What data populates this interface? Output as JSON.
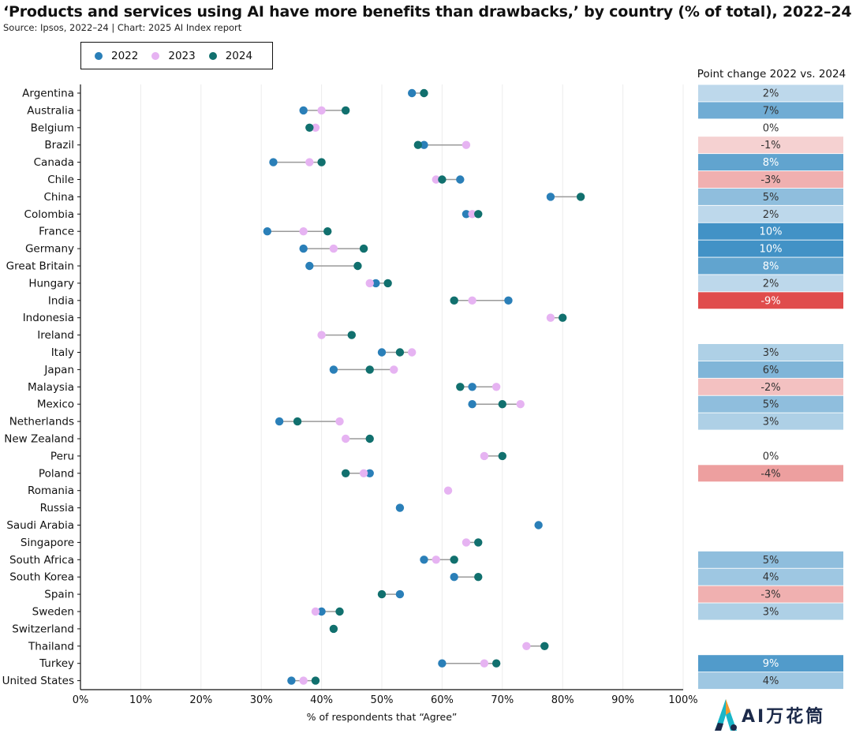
{
  "header": {
    "title": "‘Products and services using AI have more benefits than drawbacks,’ by country (% of total), 2022–24",
    "source": "Source: Ipsos, 2022–24 | Chart: 2025 AI Index report"
  },
  "delta_header": "Point change 2022 vs. 2024",
  "watermark": {
    "text": "AI万花筒"
  },
  "chart_data": {
    "type": "scatter",
    "subtype": "dumbbell",
    "title": "‘Products and services using AI have more benefits than drawbacks,’ by country (% of total), 2022–24",
    "xlabel": "% of respondents that “Agree”",
    "ylabel": "",
    "xlim": [
      0,
      100
    ],
    "x_ticks": [
      "0%",
      "10%",
      "20%",
      "30%",
      "40%",
      "50%",
      "60%",
      "70%",
      "80%",
      "90%",
      "100%"
    ],
    "grid": true,
    "legend_position": "top-left",
    "series": [
      {
        "name": "2022",
        "color": "#2a7fb8"
      },
      {
        "name": "2023",
        "color": "#e6b3f2"
      },
      {
        "name": "2024",
        "color": "#11706e"
      }
    ],
    "rows": [
      {
        "country": "Argentina",
        "v2022": 55,
        "v2023": null,
        "v2024": 57,
        "change": "2%",
        "change_value": 2
      },
      {
        "country": "Australia",
        "v2022": 37,
        "v2023": 40,
        "v2024": 44,
        "change": "7%",
        "change_value": 7
      },
      {
        "country": "Belgium",
        "v2022": null,
        "v2023": 39,
        "v2024": 38,
        "change": "0%",
        "change_value": 0
      },
      {
        "country": "Brazil",
        "v2022": 57,
        "v2023": 64,
        "v2024": 56,
        "change": "-1%",
        "change_value": -1
      },
      {
        "country": "Canada",
        "v2022": 32,
        "v2023": 38,
        "v2024": 40,
        "change": "8%",
        "change_value": 8
      },
      {
        "country": "Chile",
        "v2022": 63,
        "v2023": 59,
        "v2024": 60,
        "change": "-3%",
        "change_value": -3
      },
      {
        "country": "China",
        "v2022": 78,
        "v2023": null,
        "v2024": 83,
        "change": "5%",
        "change_value": 5
      },
      {
        "country": "Colombia",
        "v2022": 64,
        "v2023": 65,
        "v2024": 66,
        "change": "2%",
        "change_value": 2
      },
      {
        "country": "France",
        "v2022": 31,
        "v2023": 37,
        "v2024": 41,
        "change": "10%",
        "change_value": 10
      },
      {
        "country": "Germany",
        "v2022": 37,
        "v2023": 42,
        "v2024": 47,
        "change": "10%",
        "change_value": 10
      },
      {
        "country": "Great Britain",
        "v2022": 38,
        "v2023": null,
        "v2024": 46,
        "change": "8%",
        "change_value": 8
      },
      {
        "country": "Hungary",
        "v2022": 49,
        "v2023": 48,
        "v2024": 51,
        "change": "2%",
        "change_value": 2
      },
      {
        "country": "India",
        "v2022": 71,
        "v2023": 65,
        "v2024": 62,
        "change": "-9%",
        "change_value": -9
      },
      {
        "country": "Indonesia",
        "v2022": null,
        "v2023": 78,
        "v2024": 80,
        "change": "",
        "change_value": null
      },
      {
        "country": "Ireland",
        "v2022": null,
        "v2023": 40,
        "v2024": 45,
        "change": "",
        "change_value": null
      },
      {
        "country": "Italy",
        "v2022": 50,
        "v2023": 55,
        "v2024": 53,
        "change": "3%",
        "change_value": 3
      },
      {
        "country": "Japan",
        "v2022": 42,
        "v2023": 52,
        "v2024": 48,
        "change": "6%",
        "change_value": 6
      },
      {
        "country": "Malaysia",
        "v2022": 65,
        "v2023": 69,
        "v2024": 63,
        "change": "-2%",
        "change_value": -2
      },
      {
        "country": "Mexico",
        "v2022": 65,
        "v2023": 73,
        "v2024": 70,
        "change": "5%",
        "change_value": 5
      },
      {
        "country": "Netherlands",
        "v2022": 33,
        "v2023": 43,
        "v2024": 36,
        "change": "3%",
        "change_value": 3
      },
      {
        "country": "New Zealand",
        "v2022": null,
        "v2023": 44,
        "v2024": 48,
        "change": "",
        "change_value": null
      },
      {
        "country": "Peru",
        "v2022": null,
        "v2023": 67,
        "v2024": 70,
        "change": "0%",
        "change_value": 0
      },
      {
        "country": "Poland",
        "v2022": 48,
        "v2023": 47,
        "v2024": 44,
        "change": "-4%",
        "change_value": -4
      },
      {
        "country": "Romania",
        "v2022": null,
        "v2023": 61,
        "v2024": null,
        "change": "",
        "change_value": null
      },
      {
        "country": "Russia",
        "v2022": 53,
        "v2023": null,
        "v2024": null,
        "change": "",
        "change_value": null
      },
      {
        "country": "Saudi Arabia",
        "v2022": 76,
        "v2023": null,
        "v2024": null,
        "change": "",
        "change_value": null
      },
      {
        "country": "Singapore",
        "v2022": null,
        "v2023": 64,
        "v2024": 66,
        "change": "",
        "change_value": null
      },
      {
        "country": "South Africa",
        "v2022": 57,
        "v2023": 59,
        "v2024": 62,
        "change": "5%",
        "change_value": 5
      },
      {
        "country": "South Korea",
        "v2022": 62,
        "v2023": null,
        "v2024": 66,
        "change": "4%",
        "change_value": 4
      },
      {
        "country": "Spain",
        "v2022": 53,
        "v2023": null,
        "v2024": 50,
        "change": "-3%",
        "change_value": -3
      },
      {
        "country": "Sweden",
        "v2022": 40,
        "v2023": 39,
        "v2024": 43,
        "change": "3%",
        "change_value": 3
      },
      {
        "country": "Switzerland",
        "v2022": null,
        "v2023": null,
        "v2024": 42,
        "change": "",
        "change_value": null
      },
      {
        "country": "Thailand",
        "v2022": null,
        "v2023": 74,
        "v2024": 77,
        "change": "",
        "change_value": null
      },
      {
        "country": "Turkey",
        "v2022": 60,
        "v2023": 67,
        "v2024": 69,
        "change": "9%",
        "change_value": 9
      },
      {
        "country": "United States",
        "v2022": 35,
        "v2023": 37,
        "v2024": 39,
        "change": "4%",
        "change_value": 4
      }
    ]
  }
}
